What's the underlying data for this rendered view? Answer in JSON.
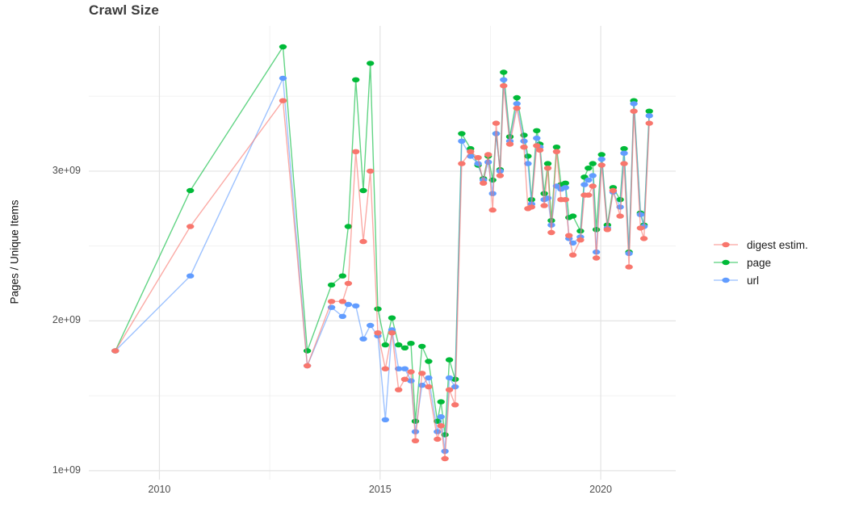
{
  "title": "Crawl Size",
  "ylabel": "Pages / Unique Items",
  "legend": {
    "position": "right",
    "items": [
      {
        "label": "digest estim.",
        "color": "#F8766D"
      },
      {
        "label": "page",
        "color": "#00BA38"
      },
      {
        "label": "url",
        "color": "#619CFF"
      }
    ]
  },
  "axes": {
    "y_tick_labels": [
      "1e+09",
      "2e+09",
      "3e+09"
    ],
    "x_tick_labels": [
      "2010",
      "2015",
      "2020"
    ]
  },
  "chart_data": {
    "type": "line",
    "title": "Crawl Size",
    "xlabel": "",
    "ylabel": "Pages / Unique Items",
    "y_unit": "pages (value 1.0 = 1e+09)",
    "xlim": [
      2008.4,
      2021.7
    ],
    "ylim": [
      0.94,
      3.97
    ],
    "x_major_ticks": [
      2010,
      2015,
      2020
    ],
    "x_minor_ticks": [
      2012.5,
      2017.5
    ],
    "y_major_ticks": [
      1,
      2,
      3
    ],
    "y_minor_ticks": [
      1.5,
      2.5,
      3.5
    ],
    "grid": true,
    "legend_position": "right",
    "x": [
      2009.0,
      2010.7,
      2012.8,
      2013.35,
      2013.9,
      2014.15,
      2014.28,
      2014.45,
      2014.62,
      2014.78,
      2014.95,
      2015.12,
      2015.27,
      2015.42,
      2015.56,
      2015.7,
      2015.8,
      2015.95,
      2016.1,
      2016.3,
      2016.38,
      2016.47,
      2016.57,
      2016.7,
      2016.85,
      2017.05,
      2017.22,
      2017.34,
      2017.45,
      2017.55,
      2017.63,
      2017.72,
      2017.8,
      2017.94,
      2018.1,
      2018.26,
      2018.35,
      2018.43,
      2018.55,
      2018.62,
      2018.72,
      2018.8,
      2018.88,
      2019.0,
      2019.1,
      2019.2,
      2019.28,
      2019.37,
      2019.54,
      2019.63,
      2019.72,
      2019.82,
      2019.9,
      2020.02,
      2020.15,
      2020.28,
      2020.44,
      2020.53,
      2020.64,
      2020.75,
      2020.9,
      2020.98,
      2021.1
    ],
    "series": [
      {
        "name": "page",
        "color": "#00BA38",
        "values": [
          1.8,
          2.87,
          3.83,
          1.8,
          2.24,
          2.3,
          2.63,
          3.61,
          2.87,
          3.72,
          2.08,
          1.84,
          2.02,
          1.84,
          1.82,
          1.85,
          1.33,
          1.83,
          1.73,
          1.33,
          1.46,
          1.24,
          1.74,
          1.61,
          3.25,
          3.15,
          3.04,
          2.95,
          3.1,
          2.94,
          3.25,
          3.01,
          3.66,
          3.23,
          3.49,
          3.24,
          3.1,
          2.81,
          3.27,
          3.18,
          2.85,
          3.05,
          2.67,
          3.16,
          2.91,
          2.92,
          2.69,
          2.7,
          2.6,
          2.96,
          3.02,
          3.05,
          2.61,
          3.11,
          2.64,
          2.89,
          2.81,
          3.15,
          2.46,
          3.47,
          2.72,
          2.64,
          3.4
        ]
      },
      {
        "name": "url",
        "color": "#619CFF",
        "values": [
          1.8,
          2.3,
          3.62,
          1.7,
          2.09,
          2.03,
          2.11,
          2.1,
          1.88,
          1.97,
          1.9,
          1.34,
          1.94,
          1.68,
          1.68,
          1.6,
          1.26,
          1.57,
          1.62,
          1.26,
          1.36,
          1.13,
          1.62,
          1.56,
          3.2,
          3.1,
          3.05,
          2.94,
          3.06,
          2.85,
          3.25,
          3.0,
          3.61,
          3.2,
          3.45,
          3.2,
          3.05,
          2.78,
          3.22,
          3.16,
          2.81,
          2.82,
          2.64,
          2.9,
          2.88,
          2.89,
          2.55,
          2.52,
          2.56,
          2.91,
          2.94,
          2.97,
          2.46,
          3.08,
          2.62,
          2.86,
          2.76,
          3.12,
          2.45,
          3.45,
          2.71,
          2.63,
          3.37
        ]
      },
      {
        "name": "digest estim.",
        "color": "#F8766D",
        "values": [
          1.8,
          2.63,
          3.47,
          1.7,
          2.13,
          2.13,
          2.25,
          3.13,
          2.53,
          3.0,
          1.92,
          1.68,
          1.92,
          1.54,
          1.61,
          1.66,
          1.2,
          1.65,
          1.56,
          1.21,
          1.3,
          1.08,
          1.54,
          1.44,
          3.05,
          3.13,
          3.09,
          2.92,
          3.11,
          2.74,
          3.32,
          2.97,
          3.57,
          3.18,
          3.42,
          3.16,
          2.75,
          2.76,
          3.17,
          3.14,
          2.77,
          3.02,
          2.59,
          3.13,
          2.81,
          2.81,
          2.57,
          2.44,
          2.54,
          2.84,
          2.84,
          2.9,
          2.42,
          3.04,
          2.61,
          2.87,
          2.7,
          3.05,
          2.36,
          3.4,
          2.62,
          2.55,
          3.32
        ]
      }
    ]
  }
}
